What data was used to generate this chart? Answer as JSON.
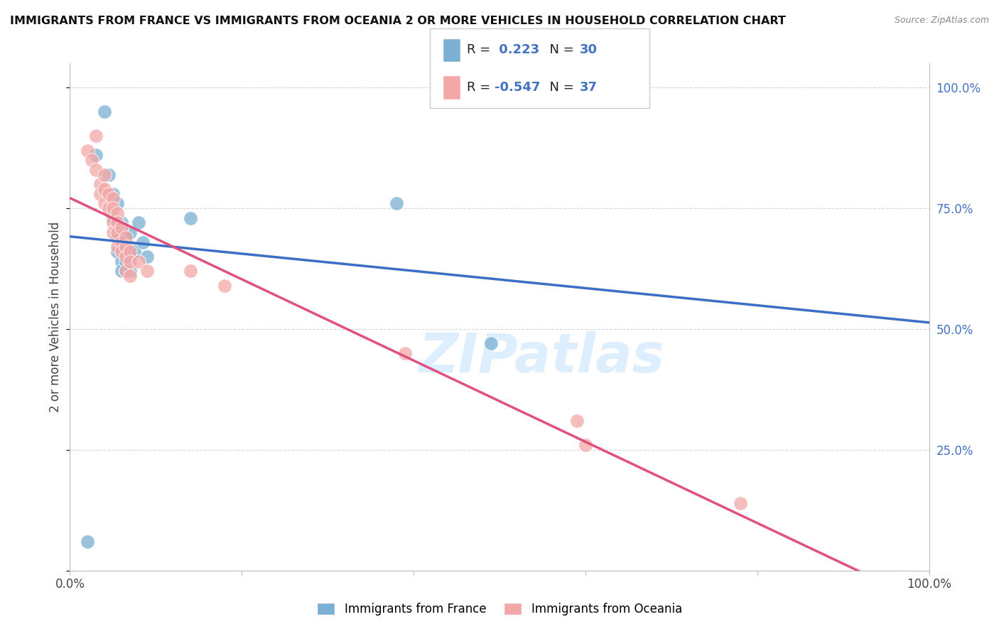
{
  "title": "IMMIGRANTS FROM FRANCE VS IMMIGRANTS FROM OCEANIA 2 OR MORE VEHICLES IN HOUSEHOLD CORRELATION CHART",
  "source": "Source: ZipAtlas.com",
  "ylabel": "2 or more Vehicles in Household",
  "legend1_label": "Immigrants from France",
  "legend2_label": "Immigrants from Oceania",
  "R1": 0.223,
  "N1": 30,
  "R2": -0.547,
  "N2": 37,
  "france_color": "#7bafd4",
  "oceania_color": "#f4a7a7",
  "france_line_color": "#3a6fc4",
  "oceania_line_color": "#e05080",
  "france_scatter": [
    [
      0.02,
      0.06
    ],
    [
      0.03,
      0.86
    ],
    [
      0.04,
      0.95
    ],
    [
      0.045,
      0.82
    ],
    [
      0.05,
      0.78
    ],
    [
      0.05,
      0.73
    ],
    [
      0.055,
      0.76
    ],
    [
      0.055,
      0.72
    ],
    [
      0.055,
      0.69
    ],
    [
      0.055,
      0.66
    ],
    [
      0.06,
      0.72
    ],
    [
      0.06,
      0.69
    ],
    [
      0.06,
      0.66
    ],
    [
      0.06,
      0.64
    ],
    [
      0.06,
      0.62
    ],
    [
      0.065,
      0.69
    ],
    [
      0.065,
      0.66
    ],
    [
      0.065,
      0.64
    ],
    [
      0.065,
      0.62
    ],
    [
      0.07,
      0.7
    ],
    [
      0.07,
      0.67
    ],
    [
      0.07,
      0.65
    ],
    [
      0.07,
      0.62
    ],
    [
      0.075,
      0.66
    ],
    [
      0.08,
      0.72
    ],
    [
      0.085,
      0.68
    ],
    [
      0.09,
      0.65
    ],
    [
      0.14,
      0.73
    ],
    [
      0.38,
      0.76
    ],
    [
      0.49,
      0.47
    ]
  ],
  "oceania_scatter": [
    [
      0.02,
      0.87
    ],
    [
      0.025,
      0.85
    ],
    [
      0.03,
      0.83
    ],
    [
      0.035,
      0.8
    ],
    [
      0.035,
      0.78
    ],
    [
      0.04,
      0.82
    ],
    [
      0.04,
      0.79
    ],
    [
      0.04,
      0.76
    ],
    [
      0.045,
      0.78
    ],
    [
      0.045,
      0.75
    ],
    [
      0.05,
      0.77
    ],
    [
      0.05,
      0.75
    ],
    [
      0.05,
      0.72
    ],
    [
      0.05,
      0.7
    ],
    [
      0.055,
      0.74
    ],
    [
      0.055,
      0.72
    ],
    [
      0.055,
      0.7
    ],
    [
      0.055,
      0.67
    ],
    [
      0.06,
      0.71
    ],
    [
      0.06,
      0.68
    ],
    [
      0.06,
      0.66
    ],
    [
      0.065,
      0.69
    ],
    [
      0.065,
      0.67
    ],
    [
      0.065,
      0.65
    ],
    [
      0.065,
      0.62
    ],
    [
      0.07,
      0.66
    ],
    [
      0.07,
      0.64
    ],
    [
      0.07,
      0.61
    ],
    [
      0.08,
      0.64
    ],
    [
      0.09,
      0.62
    ],
    [
      0.14,
      0.62
    ],
    [
      0.18,
      0.59
    ],
    [
      0.39,
      0.45
    ],
    [
      0.59,
      0.31
    ],
    [
      0.6,
      0.26
    ],
    [
      0.78,
      0.14
    ],
    [
      0.03,
      0.9
    ]
  ],
  "xlim": [
    0.0,
    1.0
  ],
  "ylim": [
    0.0,
    1.05
  ],
  "xticks": [
    0.0,
    0.2,
    0.4,
    0.6,
    0.8,
    1.0
  ],
  "xticklabels": [
    "0.0%",
    "",
    "",
    "",
    "",
    "100.0%"
  ],
  "yticks": [
    0.0,
    0.25,
    0.5,
    0.75,
    1.0
  ],
  "yticklabels_right": [
    "",
    "25.0%",
    "50.0%",
    "75.0%",
    "100.0%"
  ],
  "background_color": "#ffffff",
  "grid_color": "#cccccc",
  "watermark": "ZIPatlas",
  "watermark_color": "#ddeeff"
}
